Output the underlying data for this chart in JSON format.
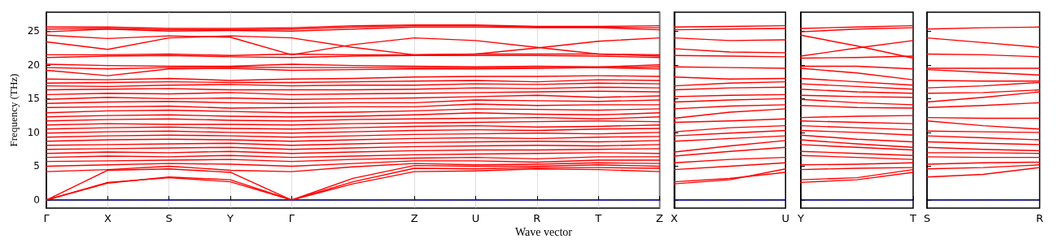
{
  "chart_data": [
    {
      "type": "line",
      "ylabel": "Frequency (THz)",
      "xlabel": "Wave vector",
      "categories": [
        "Γ",
        "X",
        "S",
        "Y",
        "Γ",
        null,
        "Z",
        "U",
        "R",
        "T",
        "Z"
      ],
      "ylim": [
        -1.2,
        27.8
      ],
      "yticks": [
        0,
        5,
        10,
        15,
        20,
        25
      ],
      "grid": "x",
      "marker": "none",
      "line_style": "solid",
      "ref_lines": [
        {
          "axis": "y",
          "value": 0,
          "color": "#0000ff",
          "line_style": "dotted"
        }
      ],
      "series": [
        {
          "color": "#ff0000",
          "values": [
            0,
            2.6,
            3.3,
            2.7,
            0,
            2.4,
            4.2,
            4.3,
            4.6,
            4.5,
            4.2
          ]
        },
        {
          "color": "#ff0000",
          "values": [
            0,
            2.5,
            3.4,
            3.0,
            0,
            2.7,
            4.7,
            4.6,
            4.8,
            4.8,
            4.7
          ]
        },
        {
          "color": "#ff0000",
          "values": [
            0,
            4.4,
            4.6,
            4.1,
            0,
            3.2,
            5.1,
            5.0,
            5.0,
            5.2,
            5.0
          ]
        },
        {
          "color": "#ff0000",
          "values": [
            4.2,
            4.5,
            5.0,
            4.4,
            4.2,
            4.9,
            5.4,
            5.2,
            5.3,
            5.5,
            5.4
          ]
        },
        {
          "color": "#ff0000",
          "values": [
            5.0,
            5.2,
            5.4,
            5.3,
            5.0,
            5.4,
            5.8,
            5.8,
            5.6,
            5.9,
            5.9
          ]
        },
        {
          "color": "#ff0000",
          "values": [
            5.7,
            5.8,
            5.9,
            6.0,
            5.7,
            6.0,
            6.2,
            6.3,
            6.1,
            6.4,
            6.4
          ]
        },
        {
          "color": "#ff0000",
          "values": [
            6.3,
            6.5,
            6.4,
            6.6,
            6.3,
            6.5,
            6.7,
            6.8,
            6.9,
            7.0,
            6.9
          ]
        },
        {
          "color": "#ff0000",
          "values": [
            6.9,
            7.1,
            7.0,
            7.2,
            6.9,
            7.1,
            7.3,
            7.4,
            7.4,
            7.5,
            7.6
          ]
        },
        {
          "color": "#ff0000",
          "values": [
            7.5,
            7.6,
            7.7,
            7.8,
            7.5,
            7.7,
            7.9,
            8.0,
            8.1,
            8.0,
            8.2
          ]
        },
        {
          "color": "#ff0000",
          "values": [
            8.1,
            8.2,
            8.3,
            8.4,
            8.1,
            8.3,
            8.5,
            8.6,
            8.7,
            8.6,
            8.8
          ]
        },
        {
          "color": "#ff0000",
          "values": [
            8.7,
            8.9,
            9.0,
            8.9,
            8.7,
            8.9,
            9.1,
            9.2,
            9.1,
            9.3,
            9.4
          ]
        },
        {
          "color": "#ff0000",
          "values": [
            9.3,
            9.5,
            9.6,
            9.5,
            9.3,
            9.5,
            9.7,
            9.8,
            9.9,
            9.8,
            10.0
          ]
        },
        {
          "color": "#ff0000",
          "values": [
            9.9,
            10.1,
            10.2,
            10.0,
            9.9,
            10.1,
            10.3,
            10.4,
            10.3,
            10.5,
            10.6
          ]
        },
        {
          "color": "#ff0000",
          "values": [
            10.5,
            10.7,
            10.8,
            10.6,
            10.5,
            10.7,
            10.9,
            11.0,
            10.8,
            10.9,
            11.1
          ]
        },
        {
          "color": "#ff0000",
          "values": [
            11.1,
            11.3,
            11.2,
            11.2,
            11.1,
            11.3,
            11.4,
            11.5,
            11.6,
            11.7,
            11.6
          ]
        },
        {
          "color": "#ff0000",
          "values": [
            11.7,
            11.9,
            12.0,
            11.8,
            11.7,
            11.9,
            12.0,
            12.1,
            12.2,
            12.0,
            12.3
          ]
        },
        {
          "color": "#ff0000",
          "values": [
            12.3,
            12.5,
            12.6,
            12.4,
            12.3,
            12.4,
            12.6,
            12.9,
            12.7,
            12.6,
            12.9
          ]
        },
        {
          "color": "#ff0000",
          "values": [
            12.9,
            13.2,
            13.3,
            13.1,
            12.9,
            13.0,
            13.2,
            13.5,
            13.4,
            13.3,
            13.5
          ]
        },
        {
          "color": "#ff0000",
          "values": [
            13.7,
            13.8,
            13.9,
            13.6,
            13.7,
            13.8,
            13.8,
            14.2,
            14.0,
            14.1,
            14.1
          ]
        },
        {
          "color": "#ff0000",
          "values": [
            14.3,
            14.5,
            14.6,
            14.4,
            14.3,
            14.4,
            14.4,
            14.8,
            14.7,
            14.6,
            14.8
          ]
        },
        {
          "color": "#ff0000",
          "values": [
            14.9,
            15.2,
            15.0,
            15.1,
            14.9,
            15.0,
            15.1,
            15.3,
            15.5,
            15.2,
            15.4
          ]
        },
        {
          "color": "#ff0000",
          "values": [
            15.6,
            15.8,
            15.7,
            15.9,
            15.6,
            15.7,
            15.8,
            15.9,
            16.0,
            16.1,
            16.0
          ]
        },
        {
          "color": "#ff0000",
          "values": [
            16.3,
            16.4,
            16.5,
            16.3,
            16.3,
            16.3,
            16.4,
            16.6,
            16.5,
            16.7,
            16.6
          ]
        },
        {
          "color": "#ff0000",
          "values": [
            16.9,
            16.8,
            17.0,
            17.1,
            16.9,
            17.0,
            17.0,
            17.2,
            17.1,
            17.3,
            17.2
          ]
        },
        {
          "color": "#ff0000",
          "values": [
            17.3,
            17.4,
            17.5,
            17.4,
            17.4,
            17.5,
            17.6,
            17.7,
            17.5,
            17.8,
            17.7
          ]
        },
        {
          "color": "#ff0000",
          "values": [
            17.9,
            17.8,
            18.0,
            17.7,
            17.9,
            18.0,
            18.2,
            18.3,
            18.3,
            18.4,
            18.3
          ]
        },
        {
          "color": "#ff0000",
          "values": [
            19.2,
            18.4,
            19.4,
            19.5,
            19.2,
            19.3,
            19.4,
            19.4,
            19.5,
            19.6,
            19.4
          ]
        },
        {
          "color": "#ff0000",
          "values": [
            19.6,
            19.4,
            19.6,
            19.7,
            19.6,
            19.6,
            19.6,
            19.6,
            19.6,
            19.6,
            19.7
          ]
        },
        {
          "color": "#ff0000",
          "values": [
            20.1,
            19.9,
            19.8,
            19.8,
            20.1,
            19.9,
            19.8,
            19.7,
            19.8,
            19.7,
            20.0
          ]
        },
        {
          "color": "#ff0000",
          "values": [
            21.1,
            21.3,
            21.4,
            21.2,
            21.1,
            21.3,
            21.4,
            21.4,
            21.4,
            21.3,
            21.1
          ]
        },
        {
          "color": "#ff0000",
          "values": [
            21.5,
            21.5,
            21.6,
            21.4,
            21.6,
            21.5,
            21.5,
            21.6,
            21.6,
            21.6,
            21.5
          ]
        },
        {
          "color": "#ff0000",
          "values": [
            23.4,
            22.3,
            24.0,
            24.3,
            24.0,
            22.6,
            21.5,
            21.6,
            22.5,
            23.5,
            24.0
          ]
        },
        {
          "color": "#ff0000",
          "values": [
            24.4,
            23.9,
            24.3,
            24.1,
            21.5,
            23.0,
            24.0,
            23.6,
            22.6,
            21.6,
            21.3
          ]
        },
        {
          "color": "#ff0000",
          "values": [
            24.9,
            25.3,
            25.0,
            25.1,
            25.0,
            25.3,
            25.6,
            25.6,
            25.5,
            25.5,
            25.2
          ]
        },
        {
          "color": "#ff0000",
          "values": [
            25.3,
            25.4,
            25.2,
            25.2,
            25.3,
            25.6,
            25.8,
            25.8,
            25.6,
            25.6,
            25.5
          ]
        },
        {
          "color": "#ff0000",
          "values": [
            25.6,
            25.6,
            25.4,
            25.4,
            25.5,
            25.8,
            25.9,
            25.9,
            25.7,
            25.7,
            25.8
          ]
        }
      ]
    },
    {
      "type": "line",
      "categories": [
        "X",
        null,
        "U"
      ],
      "ylim": [
        -1.2,
        27.8
      ],
      "yticks": [
        0,
        5,
        10,
        15,
        20,
        25
      ],
      "tick_labels": "x",
      "marker": "none",
      "line_style": "solid",
      "ref_lines": [
        {
          "axis": "y",
          "value": 0,
          "color": "#0000ff",
          "line_style": "dotted"
        }
      ],
      "series": [
        {
          "color": "#ff0000",
          "values": [
            25.6,
            25.7,
            25.8
          ]
        },
        {
          "color": "#ff0000",
          "values": [
            25.2,
            25.3,
            25.4
          ]
        },
        {
          "color": "#ff0000",
          "values": [
            24.0,
            23.6,
            23.7
          ]
        },
        {
          "color": "#ff0000",
          "values": [
            22.4,
            21.9,
            21.8
          ]
        },
        {
          "color": "#ff0000",
          "values": [
            21.4,
            21.3,
            21.2
          ]
        },
        {
          "color": "#ff0000",
          "values": [
            19.7,
            19.6,
            19.5
          ]
        },
        {
          "color": "#ff0000",
          "values": [
            18.2,
            17.9,
            18.0
          ]
        },
        {
          "color": "#ff0000",
          "values": [
            16.9,
            17.3,
            17.5
          ]
        },
        {
          "color": "#ff0000",
          "values": [
            16.3,
            16.6,
            16.7
          ]
        },
        {
          "color": "#ff0000",
          "values": [
            15.3,
            15.5,
            15.6
          ]
        },
        {
          "color": "#ff0000",
          "values": [
            14.5,
            14.8,
            15.0
          ]
        },
        {
          "color": "#ff0000",
          "values": [
            13.5,
            13.9,
            14.1
          ]
        },
        {
          "color": "#ff0000",
          "values": [
            12.1,
            13.0,
            13.5
          ]
        },
        {
          "color": "#ff0000",
          "values": [
            11.5,
            11.7,
            12.0
          ]
        },
        {
          "color": "#ff0000",
          "values": [
            10.1,
            10.7,
            11.0
          ]
        },
        {
          "color": "#ff0000",
          "values": [
            9.5,
            9.9,
            10.3
          ]
        },
        {
          "color": "#ff0000",
          "values": [
            8.7,
            9.1,
            9.5
          ]
        },
        {
          "color": "#ff0000",
          "values": [
            7.1,
            8.0,
            8.8
          ]
        },
        {
          "color": "#ff0000",
          "values": [
            6.5,
            7.2,
            7.8
          ]
        },
        {
          "color": "#ff0000",
          "values": [
            5.5,
            6.0,
            6.3
          ]
        },
        {
          "color": "#ff0000",
          "values": [
            4.5,
            5.0,
            5.5
          ]
        },
        {
          "color": "#ff0000",
          "values": [
            2.4,
            3.0,
            4.6
          ]
        },
        {
          "color": "#ff0000",
          "values": [
            2.7,
            3.2,
            4.1
          ]
        }
      ]
    },
    {
      "type": "line",
      "categories": [
        "Y",
        null,
        "T"
      ],
      "ylim": [
        -1.2,
        27.8
      ],
      "yticks": [
        0,
        5,
        10,
        15,
        20,
        25
      ],
      "tick_labels": "x",
      "marker": "none",
      "line_style": "solid",
      "ref_lines": [
        {
          "axis": "y",
          "value": 0,
          "color": "#0000ff",
          "line_style": "dotted"
        }
      ],
      "series": [
        {
          "color": "#ff0000",
          "values": [
            25.4,
            25.6,
            25.8
          ]
        },
        {
          "color": "#ff0000",
          "values": [
            24.9,
            25.3,
            25.5
          ]
        },
        {
          "color": "#ff0000",
          "values": [
            24.4,
            22.8,
            21.0
          ]
        },
        {
          "color": "#ff0000",
          "values": [
            21.3,
            22.5,
            23.6
          ]
        },
        {
          "color": "#ff0000",
          "values": [
            21.0,
            21.1,
            21.3
          ]
        },
        {
          "color": "#ff0000",
          "values": [
            19.8,
            19.8,
            19.4
          ]
        },
        {
          "color": "#ff0000",
          "values": [
            19.5,
            18.8,
            17.8
          ]
        },
        {
          "color": "#ff0000",
          "values": [
            18.0,
            17.5,
            17.0
          ]
        },
        {
          "color": "#ff0000",
          "values": [
            17.2,
            16.8,
            16.4
          ]
        },
        {
          "color": "#ff0000",
          "values": [
            16.4,
            16.0,
            15.8
          ]
        },
        {
          "color": "#ff0000",
          "values": [
            15.5,
            15.3,
            15.2
          ]
        },
        {
          "color": "#ff0000",
          "values": [
            14.9,
            14.4,
            14.1
          ]
        },
        {
          "color": "#ff0000",
          "values": [
            14.0,
            13.7,
            13.6
          ]
        },
        {
          "color": "#ff0000",
          "values": [
            12.2,
            12.4,
            12.5
          ]
        },
        {
          "color": "#ff0000",
          "values": [
            11.7,
            11.5,
            11.3
          ]
        },
        {
          "color": "#ff0000",
          "values": [
            11.0,
            10.7,
            10.4
          ]
        },
        {
          "color": "#ff0000",
          "values": [
            10.3,
            10.0,
            9.6
          ]
        },
        {
          "color": "#ff0000",
          "values": [
            9.6,
            9.0,
            8.6
          ]
        },
        {
          "color": "#ff0000",
          "values": [
            8.9,
            8.3,
            7.8
          ]
        },
        {
          "color": "#ff0000",
          "values": [
            8.2,
            7.8,
            7.4
          ]
        },
        {
          "color": "#ff0000",
          "values": [
            7.2,
            6.9,
            6.6
          ]
        },
        {
          "color": "#ff0000",
          "values": [
            6.6,
            6.3,
            6.0
          ]
        },
        {
          "color": "#ff0000",
          "values": [
            5.2,
            5.3,
            5.5
          ]
        },
        {
          "color": "#ff0000",
          "values": [
            4.5,
            4.7,
            4.8
          ]
        },
        {
          "color": "#ff0000",
          "values": [
            3.0,
            3.3,
            4.5
          ]
        },
        {
          "color": "#ff0000",
          "values": [
            2.6,
            3.0,
            4.1
          ]
        }
      ]
    },
    {
      "type": "line",
      "categories": [
        "S",
        null,
        "R"
      ],
      "ylim": [
        -1.2,
        27.8
      ],
      "yticks": [
        0,
        5,
        10,
        15,
        20,
        25
      ],
      "tick_labels": "x",
      "marker": "none",
      "line_style": "solid",
      "ref_lines": [
        {
          "axis": "y",
          "value": 0,
          "color": "#0000ff",
          "line_style": "dotted"
        }
      ],
      "series": [
        {
          "color": "#ff0000",
          "values": [
            25.3,
            25.5,
            25.6
          ]
        },
        {
          "color": "#ff0000",
          "values": [
            24.0,
            23.3,
            22.6
          ]
        },
        {
          "color": "#ff0000",
          "values": [
            21.6,
            21.5,
            21.2
          ]
        },
        {
          "color": "#ff0000",
          "values": [
            19.5,
            19.5,
            19.5
          ]
        },
        {
          "color": "#ff0000",
          "values": [
            19.3,
            18.9,
            18.5
          ]
        },
        {
          "color": "#ff0000",
          "values": [
            17.7,
            17.6,
            17.6
          ]
        },
        {
          "color": "#ff0000",
          "values": [
            16.6,
            16.9,
            17.4
          ]
        },
        {
          "color": "#ff0000",
          "values": [
            15.8,
            15.9,
            16.3
          ]
        },
        {
          "color": "#ff0000",
          "values": [
            14.5,
            15.2,
            16.0
          ]
        },
        {
          "color": "#ff0000",
          "values": [
            13.7,
            14.0,
            14.4
          ]
        },
        {
          "color": "#ff0000",
          "values": [
            12.2,
            12.1,
            12.1
          ]
        },
        {
          "color": "#ff0000",
          "values": [
            11.7,
            11.0,
            10.5
          ]
        },
        {
          "color": "#ff0000",
          "values": [
            10.2,
            10.1,
            10.0
          ]
        },
        {
          "color": "#ff0000",
          "values": [
            9.5,
            9.2,
            8.9
          ]
        },
        {
          "color": "#ff0000",
          "values": [
            8.6,
            8.4,
            8.2
          ]
        },
        {
          "color": "#ff0000",
          "values": [
            7.8,
            7.5,
            7.3
          ]
        },
        {
          "color": "#ff0000",
          "values": [
            7.0,
            7.0,
            6.9
          ]
        },
        {
          "color": "#ff0000",
          "values": [
            6.4,
            6.3,
            6.3
          ]
        },
        {
          "color": "#ff0000",
          "values": [
            5.3,
            5.5,
            5.6
          ]
        },
        {
          "color": "#ff0000",
          "values": [
            4.6,
            4.8,
            5.2
          ]
        },
        {
          "color": "#ff0000",
          "values": [
            3.4,
            3.8,
            4.8
          ]
        }
      ]
    }
  ]
}
